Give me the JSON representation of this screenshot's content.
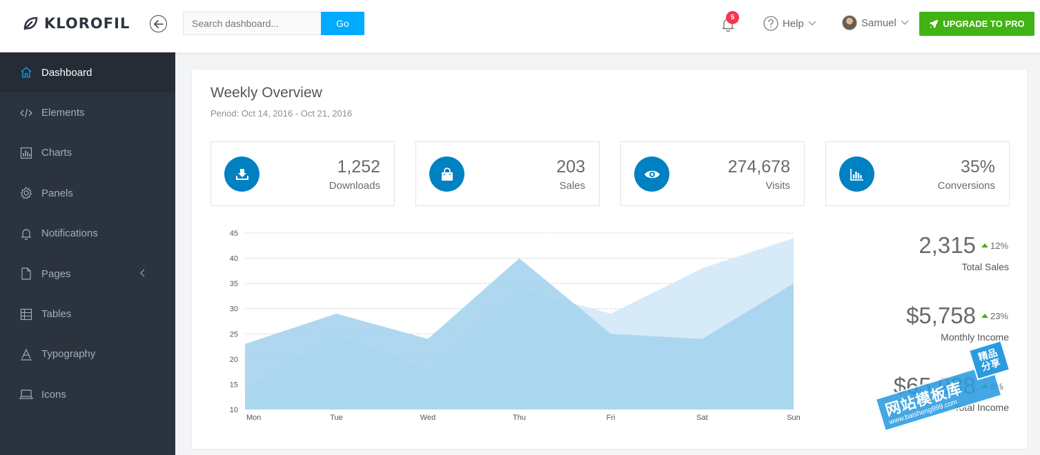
{
  "header": {
    "brand": "KLOROFIL",
    "search": {
      "placeholder": "Search dashboard...",
      "button": "Go"
    },
    "notifications_count": "5",
    "help_label": "Help",
    "user_name": "Samuel",
    "upgrade_label": "UPGRADE TO PRO"
  },
  "sidebar": {
    "items": [
      {
        "label": "Dashboard",
        "icon": "home-icon",
        "active": true
      },
      {
        "label": "Elements",
        "icon": "code-icon"
      },
      {
        "label": "Charts",
        "icon": "bar-chart-icon"
      },
      {
        "label": "Panels",
        "icon": "gear-icon"
      },
      {
        "label": "Notifications",
        "icon": "bell-icon"
      },
      {
        "label": "Pages",
        "icon": "file-icon"
      },
      {
        "label": "Tables",
        "icon": "table-icon"
      },
      {
        "label": "Typography",
        "icon": "typography-icon"
      },
      {
        "label": "Icons",
        "icon": "laptop-icon"
      }
    ]
  },
  "overview": {
    "title": "Weekly Overview",
    "period": "Period: Oct 14, 2016 - Oct 21, 2016",
    "metrics": [
      {
        "value": "1,252",
        "label": "Downloads",
        "icon": "download-icon"
      },
      {
        "value": "203",
        "label": "Sales",
        "icon": "shopping-bag-icon"
      },
      {
        "value": "274,678",
        "label": "Visits",
        "icon": "eye-icon"
      },
      {
        "value": "35%",
        "label": "Conversions",
        "icon": "bar-chart-icon"
      }
    ],
    "stats": [
      {
        "value": "2,315",
        "change": "12%",
        "label": "Total Sales"
      },
      {
        "value": "$5,758",
        "change": "23%",
        "label": "Monthly Income"
      },
      {
        "value": "$65,938",
        "change": "8%",
        "label": "Total Income"
      }
    ]
  },
  "chart_data": {
    "type": "area",
    "categories": [
      "Mon",
      "Tue",
      "Wed",
      "Thu",
      "Fri",
      "Sat",
      "Sun"
    ],
    "series": [
      {
        "values": [
          14,
          25,
          18,
          34,
          29,
          38,
          44
        ],
        "color": "#d6eaf8"
      },
      {
        "values": [
          23,
          29,
          24,
          40,
          25,
          24,
          35
        ],
        "color": "#a6d4ee"
      }
    ],
    "ylim": [
      10,
      45
    ],
    "yticks": [
      10,
      15,
      20,
      25,
      30,
      35,
      40,
      45
    ],
    "grid": true
  },
  "watermark": {
    "main": "网站模板库",
    "url": "www.baisheng999.com",
    "tag_top": "精品",
    "tag_bottom": "分享"
  },
  "colors": {
    "accent": "#00aaff",
    "brand_blue": "#0081c2",
    "upgrade_green": "#41b314",
    "badge_red": "#f9354c",
    "sidebar_bg": "#2b333e"
  }
}
